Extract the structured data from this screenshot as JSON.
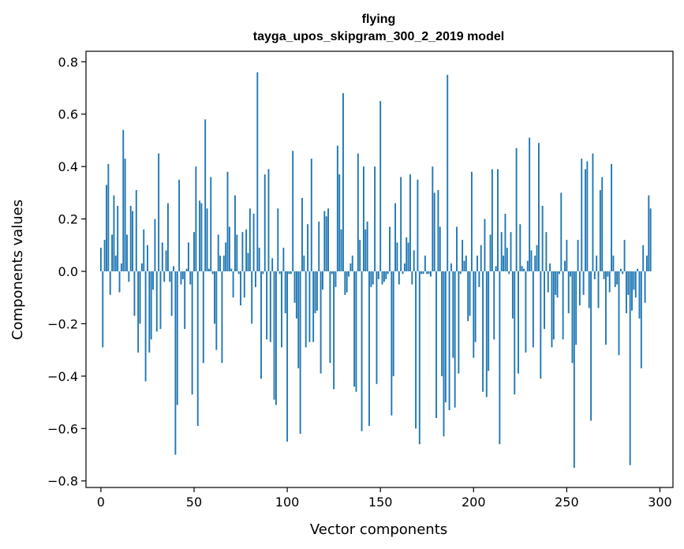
{
  "chart_data": {
    "type": "bar",
    "title_line1": "flying",
    "title_line2": "tayga_upos_skipgram_300_2_2019 model",
    "xlabel": "Vector components",
    "ylabel": "Components values",
    "xlim": [
      -8,
      307
    ],
    "ylim": [
      -0.825,
      0.84
    ],
    "x_ticks": [
      0,
      50,
      100,
      150,
      200,
      250,
      300
    ],
    "x_tick_labels": [
      "0",
      "50",
      "100",
      "150",
      "200",
      "250",
      "300"
    ],
    "y_ticks": [
      0.8,
      0.6,
      0.4,
      0.2,
      0.0,
      -0.2,
      -0.4,
      -0.6,
      -0.8
    ],
    "y_tick_labels": [
      "0.8",
      "0.6",
      "0.4",
      "0.2",
      "0.0",
      "−0.2",
      "−0.4",
      "−0.6",
      "−0.8"
    ],
    "bar_color": "#1f77b4",
    "values": [
      0.09,
      -0.29,
      0.12,
      0.33,
      0.41,
      -0.09,
      0.14,
      0.29,
      0.06,
      0.25,
      -0.08,
      0.03,
      0.54,
      0.43,
      0.14,
      -0.04,
      0.25,
      0.23,
      -0.17,
      0.31,
      -0.31,
      -0.2,
      0.03,
      0.16,
      -0.42,
      0.1,
      -0.31,
      -0.26,
      -0.07,
      0.2,
      -0.23,
      0.45,
      -0.22,
      0.11,
      -0.04,
      0.08,
      0.26,
      -0.04,
      -0.17,
      0.02,
      -0.7,
      -0.51,
      0.35,
      -0.05,
      -0.03,
      -0.22,
      0.01,
      0.11,
      -0.05,
      -0.47,
      0.15,
      0.4,
      -0.59,
      0.27,
      0.26,
      -0.35,
      0.58,
      0.24,
      0.01,
      0.36,
      -0.01,
      -0.2,
      -0.3,
      0.14,
      0.06,
      -0.35,
      0.06,
      0.11,
      0.38,
      0.17,
      0.01,
      -0.1,
      0.29,
      0.14,
      -0.01,
      -0.13,
      0.15,
      -0.1,
      0.16,
      0.07,
      0.24,
      -0.2,
      0.22,
      -0.06,
      0.76,
      0.09,
      -0.41,
      -0.01,
      0.37,
      -0.26,
      0.39,
      -0.27,
      0.05,
      -0.49,
      -0.51,
      0.24,
      -0.01,
      -0.29,
      0.09,
      -0.16,
      -0.65,
      -0.01,
      -0.01,
      0.46,
      -0.12,
      -0.18,
      -0.37,
      -0.62,
      0.28,
      0.06,
      -0.29,
      0.18,
      -0.27,
      0.43,
      -0.27,
      -0.16,
      -0.15,
      0.19,
      -0.39,
      -0.07,
      0.23,
      0.21,
      0.24,
      -0.35,
      -0.01,
      -0.45,
      -0.06,
      0.48,
      0.37,
      0.16,
      0.68,
      -0.09,
      -0.08,
      -0.02,
      0.03,
      0.06,
      -0.44,
      -0.46,
      0.45,
      0.12,
      -0.61,
      0.4,
      0.16,
      0.19,
      -0.59,
      -0.06,
      -0.05,
      0.4,
      -0.43,
      -0.03,
      0.65,
      -0.05,
      -0.04,
      -0.03,
      -0.01,
      0.17,
      -0.55,
      -0.4,
      0.26,
      0.11,
      -0.05,
      0.36,
      -0.01,
      0.03,
      0.13,
      0.11,
      0.37,
      -0.05,
      0.08,
      -0.6,
      0.35,
      -0.66,
      -0.01,
      -0.01,
      0.06,
      -0.01,
      -0.01,
      -0.02,
      0.4,
      0.3,
      -0.56,
      0.31,
      0.17,
      -0.4,
      -0.63,
      -0.5,
      0.75,
      -0.53,
      0.03,
      -0.33,
      -0.52,
      0.17,
      -0.39,
      -0.01,
      0.12,
      0.04,
      0.06,
      -0.19,
      -0.17,
      0.38,
      -0.33,
      -0.27,
      0.06,
      -0.06,
      0.1,
      -0.46,
      0.2,
      -0.48,
      -0.38,
      0.14,
      0.39,
      -0.26,
      0.02,
      0.39,
      -0.66,
      0.15,
      0.06,
      0.22,
      0.09,
      -0.01,
      0.15,
      -0.18,
      -0.47,
      0.47,
      -0.39,
      0.18,
      0.02,
      0.01,
      -0.31,
      0.04,
      0.51,
      0.08,
      -0.29,
      0.06,
      0.1,
      0.49,
      -0.41,
      0.25,
      -0.22,
      0.15,
      -0.08,
      0.03,
      -0.29,
      -0.26,
      -0.09,
      -0.1,
      -0.01,
      0.3,
      -0.26,
      0.04,
      0.12,
      -0.16,
      -0.02,
      -0.35,
      -0.75,
      -0.28,
      0.12,
      -0.13,
      0.43,
      -0.09,
      0.39,
      0.42,
      -0.14,
      -0.57,
      0.45,
      -0.03,
      0.06,
      -0.14,
      0.31,
      0.36,
      -0.03,
      -0.28,
      -0.02,
      -0.08,
      0.41,
      0.06,
      -0.06,
      -0.05,
      -0.32,
      0.01,
      -0.01,
      0.12,
      -0.16,
      -0.09,
      -0.74,
      -0.15,
      -0.07,
      -0.1,
      0.01,
      -0.18,
      -0.37,
      0.1,
      -0.12,
      0.06,
      0.29,
      0.24
    ]
  }
}
